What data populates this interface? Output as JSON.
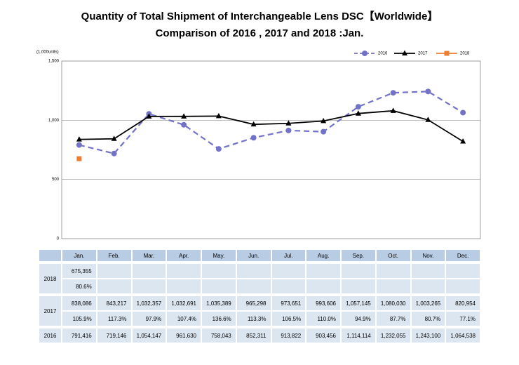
{
  "chart_data": {
    "type": "line",
    "title": "Quantity of Total Shipment of Interchangeable Lens DSC【Worldwide】",
    "subtitle": "Comparison of 2016 , 2017 and 2018 :Jan.",
    "y_label": "(1,000units)",
    "categories": [
      "Jan.",
      "Feb.",
      "Mar.",
      "Apr.",
      "May.",
      "Jun.",
      "Jul.",
      "Aug.",
      "Sep.",
      "Oct.",
      "Nov.",
      "Dec."
    ],
    "ylim": [
      0,
      1500
    ],
    "yticks": [
      0,
      500,
      {
        "value": 1000,
        "label": "1,000"
      },
      {
        "value": 1500,
        "label": "1,500"
      }
    ],
    "grid": true,
    "legend": "top-right",
    "series": [
      {
        "name": "2016",
        "color": "#7272c8",
        "dashed": true,
        "marker": "circle",
        "values": [
          791.416,
          719.146,
          1054.147,
          961.63,
          758.043,
          852.311,
          913.822,
          903.456,
          1114.114,
          1232.055,
          1243.1,
          1064.538
        ],
        "value_labels": [
          "791,416",
          "719,146",
          "1,054,147",
          "961,630",
          "758,043",
          "852,311",
          "913,822",
          "903,456",
          "1,114,114",
          "1,232,055",
          "1,243,100",
          "1,064,538"
        ]
      },
      {
        "name": "2017",
        "color": "#000000",
        "dashed": false,
        "marker": "triangle",
        "values": [
          838.086,
          843.217,
          1032.357,
          1032.691,
          1035.389,
          965.298,
          973.651,
          993.606,
          1057.145,
          1080.03,
          1003.265,
          820.954
        ],
        "value_labels": [
          "838,086",
          "843,217",
          "1,032,357",
          "1,032,691",
          "1,035,389",
          "965,298",
          "973,651",
          "993,606",
          "1,057,145",
          "1,080,030",
          "1,003,265",
          "820,954"
        ],
        "ratio_labels": [
          "105.9%",
          "117.3%",
          "97.9%",
          "107.4%",
          "136.6%",
          "113.3%",
          "106.5%",
          "110.0%",
          "94.9%",
          "87.7%",
          "80.7%",
          "77.1%"
        ]
      },
      {
        "name": "2018",
        "color": "#ed7d31",
        "dashed": false,
        "marker": "square",
        "values": [
          675.355,
          null,
          null,
          null,
          null,
          null,
          null,
          null,
          null,
          null,
          null,
          null
        ],
        "value_labels": [
          "675,355",
          null,
          null,
          null,
          null,
          null,
          null,
          null,
          null,
          null,
          null,
          null
        ],
        "ratio_labels": [
          "80.6%",
          null,
          null,
          null,
          null,
          null,
          null,
          null,
          null,
          null,
          null,
          null
        ]
      }
    ]
  }
}
